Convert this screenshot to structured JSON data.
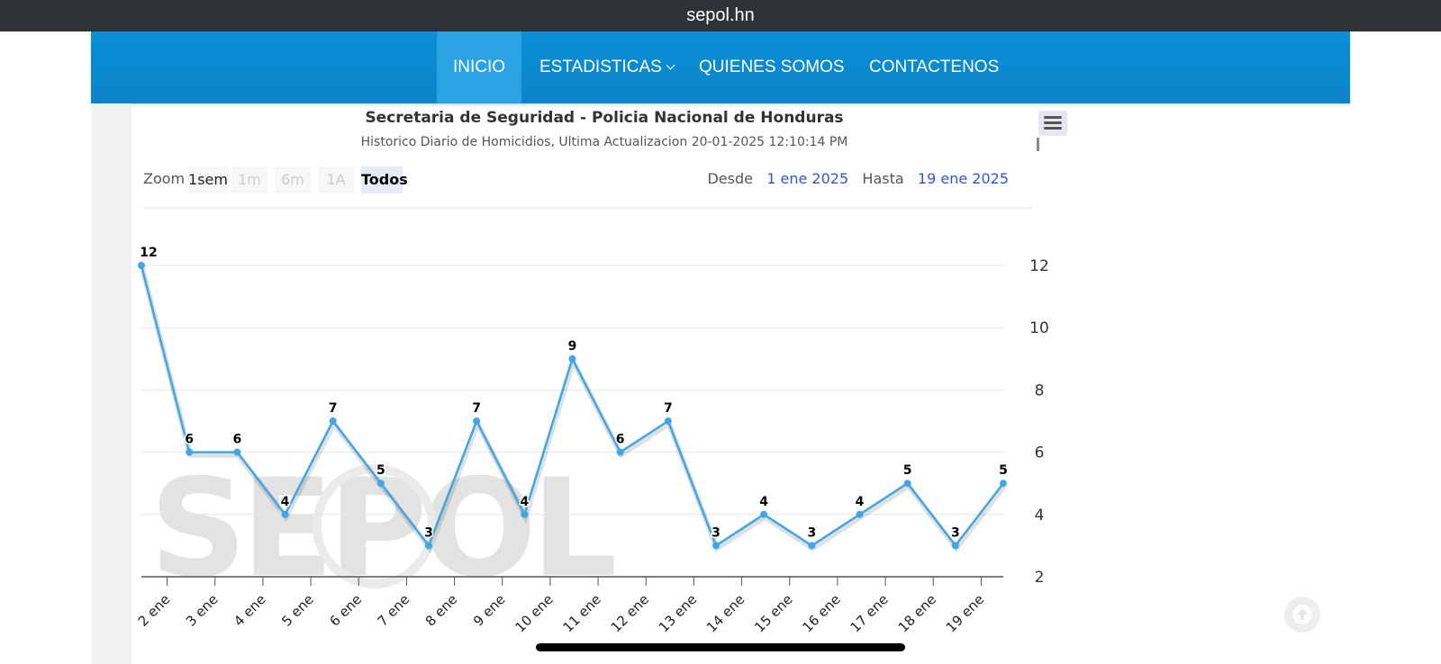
{
  "browser": {
    "url": "sepol.hn"
  },
  "nav": {
    "items": [
      {
        "label": "INICIO",
        "active": true
      },
      {
        "label": "ESTADISTICAS",
        "dropdown": true
      },
      {
        "label": "QUIENES SOMOS"
      },
      {
        "label": "CONTACTENOS"
      }
    ]
  },
  "chart": {
    "zoom_label": "Zoom",
    "zoom_buttons": [
      "1sem",
      "1m",
      "6m",
      "1A",
      "Todos"
    ],
    "zoom_selected": "Todos",
    "from_label": "Desde",
    "from_value": "1 ene 2025",
    "to_label": "Hasta",
    "to_value": "19 ene 2025",
    "watermark": "SEPOL"
  },
  "chart_data": {
    "type": "line",
    "title": "Secretaria de Seguridad - Policia Nacional de Honduras",
    "subtitle": "Historico Diario de Homicidios, Ultima Actualizacion 20-01-2025 12:10:14 PM",
    "x": [
      "1 ene",
      "2 ene",
      "3 ene",
      "4 ene",
      "5 ene",
      "6 ene",
      "7 ene",
      "8 ene",
      "9 ene",
      "10 ene",
      "11 ene",
      "12 ene",
      "13 ene",
      "14 ene",
      "15 ene",
      "16 ene",
      "17 ene",
      "18 ene",
      "19 ene"
    ],
    "x_tick_labels": [
      "2 ene",
      "3 ene",
      "4 ene",
      "5 ene",
      "6 ene",
      "7 ene",
      "8 ene",
      "9 ene",
      "10 ene",
      "11 ene",
      "12 ene",
      "13 ene",
      "14 ene",
      "15 ene",
      "16 ene",
      "17 ene",
      "18 ene",
      "19 ene"
    ],
    "series": [
      {
        "values": [
          12,
          6,
          6,
          4,
          7,
          5,
          3,
          7,
          4,
          9,
          6,
          7,
          3,
          4,
          3,
          4,
          5,
          3,
          5
        ],
        "color": "#40a6e6"
      }
    ],
    "y_ticks": [
      2,
      4,
      6,
      8,
      10,
      12
    ],
    "ylim": [
      2,
      12
    ],
    "y_axis_side": "right",
    "grid": true,
    "data_labels": true
  }
}
